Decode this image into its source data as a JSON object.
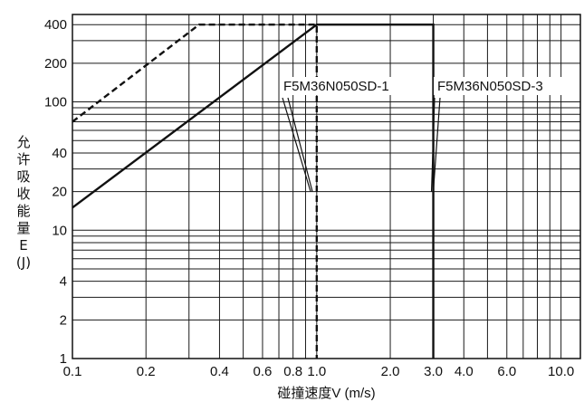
{
  "chart_data": {
    "type": "line",
    "title": "",
    "xlabel": "碰撞速度V (m/s)",
    "ylabel_chars": [
      "允",
      "许",
      "吸",
      "收",
      "能",
      "量",
      "E",
      "(J)"
    ],
    "x_scale": "log",
    "y_scale": "log",
    "xlim": [
      0.1,
      12
    ],
    "ylim": [
      1,
      480
    ],
    "x_ticks": [
      {
        "value": 0.1,
        "label": "0.1"
      },
      {
        "value": 0.2,
        "label": "0.2"
      },
      {
        "value": 0.4,
        "label": "0.4"
      },
      {
        "value": 0.6,
        "label": "0.6"
      },
      {
        "value": 0.8,
        "label": "0.8"
      },
      {
        "value": 1.0,
        "label": "1.0"
      },
      {
        "value": 2.0,
        "label": "2.0"
      },
      {
        "value": 3.0,
        "label": "3.0"
      },
      {
        "value": 4.0,
        "label": "4.0"
      },
      {
        "value": 6.0,
        "label": "6.0"
      },
      {
        "value": 10.0,
        "label": "10.0"
      }
    ],
    "y_ticks": [
      {
        "value": 1,
        "label": "1"
      },
      {
        "value": 2,
        "label": "2"
      },
      {
        "value": 4,
        "label": "4"
      },
      {
        "value": 10,
        "label": "10"
      },
      {
        "value": 20,
        "label": "20"
      },
      {
        "value": 40,
        "label": "40"
      },
      {
        "value": 100,
        "label": "100"
      },
      {
        "value": 200,
        "label": "200"
      },
      {
        "value": 400,
        "label": "400"
      }
    ],
    "x_grid": [
      0.1,
      0.2,
      0.3,
      0.4,
      0.5,
      0.6,
      0.7,
      0.8,
      0.9,
      1,
      2,
      3,
      4,
      5,
      6,
      7,
      8,
      9,
      10,
      12
    ],
    "y_grid": [
      1,
      2,
      3,
      4,
      5,
      6,
      7,
      8,
      9,
      10,
      20,
      30,
      40,
      50,
      60,
      70,
      80,
      90,
      100,
      200,
      300,
      400
    ],
    "grid": true,
    "series": [
      {
        "label": "F5M36N050SD-1",
        "style": "dashed",
        "color": "#111111",
        "points": [
          [
            0.1,
            70
          ],
          [
            0.33,
            400
          ],
          [
            1.0,
            400
          ],
          [
            1.0,
            1
          ]
        ]
      },
      {
        "label": "F5M36N050SD-3",
        "style": "solid",
        "color": "#111111",
        "points": [
          [
            0.1,
            15
          ],
          [
            1.0,
            400
          ],
          [
            3.0,
            400
          ],
          [
            3.0,
            1
          ]
        ]
      }
    ],
    "annotations": [
      {
        "text": "F5M36N050SD-1",
        "leader_to": [
          0.96,
          20
        ]
      },
      {
        "text": "F5M36N050SD-3",
        "leader_to": [
          3.0,
          20
        ]
      }
    ]
  }
}
